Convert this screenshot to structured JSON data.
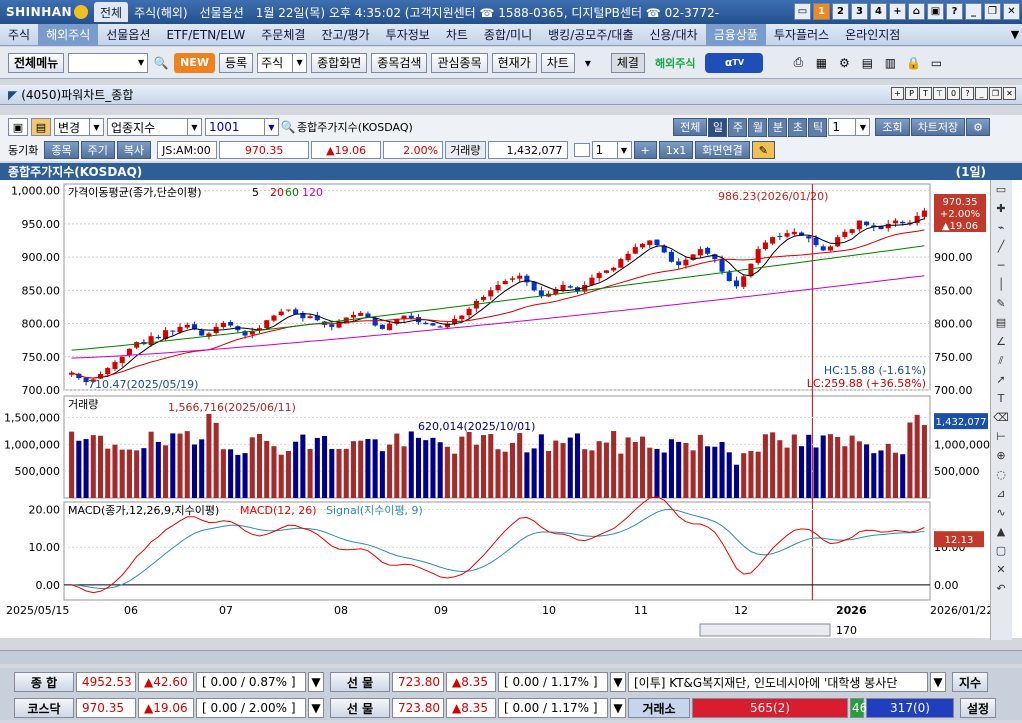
{
  "app": {
    "logo": "SHINHAN",
    "tabs": [
      "전체",
      "주식(해외)",
      "선물옵션"
    ],
    "info": "1월 22일(목) 오후 4:35:02 (고객지원센터 ☎ 1588-0365, 디지털PB센터 ☎ 02-3772-",
    "win_nums": [
      "1",
      "2",
      "3",
      "4",
      "+"
    ]
  },
  "menu": [
    "주식",
    "해외주식",
    "선물옵션",
    "ETF/ETN/ELW",
    "주문체결",
    "잔고/평가",
    "투자정보",
    "차트",
    "종합/미니",
    "뱅킹/공모주/대출",
    "신용/대차",
    "금융상품",
    "투자플러스",
    "온라인지점"
  ],
  "toolbar": {
    "allmenu": "전체메뉴",
    "new": "NEW",
    "register": "등록",
    "stock_sel": "주식",
    "combined": "종합화면",
    "search": "종목검색",
    "watch": "관심종목",
    "price": "현재가",
    "chart": "차트",
    "settle": "체결",
    "overseas": "해외주식"
  },
  "window": {
    "title": "(4050)파워차트_종합"
  },
  "controls": {
    "change": "변경",
    "index_type": "업종지수",
    "code": "1001",
    "name": "종합주가지수(KOSDAQ)",
    "periods": [
      "전체",
      "일",
      "주",
      "월",
      "분",
      "초",
      "틱"
    ],
    "period_num": "1",
    "query": "조회",
    "save": "차트저장",
    "sync": "동기화",
    "sync_tabs": [
      "종목",
      "주기",
      "복사"
    ],
    "js": "JS:AM:00",
    "price": "970.35",
    "change_val": "▲19.06",
    "pct": "2.00%",
    "vol_label": "거래량",
    "vol": "1,432,077",
    "count": "1",
    "oneone": "1x1",
    "screen_link": "화면연결"
  },
  "chart_header": {
    "title": "종합주가지수(KOSDAQ)",
    "period": "(1일)"
  },
  "chart_data": {
    "type": "candlestick",
    "price_panel": {
      "legend": "가격이동평균(종가,단순이평)",
      "ma_periods": [
        "5",
        "20",
        "60",
        "120"
      ],
      "ma_colors": {
        "5": "#000000",
        "20": "#d60000",
        "60": "#008000",
        "120": "#cc00cc"
      },
      "y_ticks": [
        "1,000.00",
        "950.00",
        "900.00",
        "850.00",
        "800.00",
        "750.00",
        "700.00"
      ],
      "ylim": [
        700,
        1010
      ],
      "high_annot": "986.23(2026/01/20)",
      "low_annot": "710.47(2025/05/19)",
      "hc": "HC:15.88 (-1.61%)",
      "lc": "LC:259.88 (+36.58%)",
      "last_price": "970.35",
      "last_pct": "+2.00%",
      "last_change": "▲19.06",
      "closes": [
        726,
        718,
        712,
        716,
        724,
        733,
        742,
        750,
        762,
        772,
        769,
        781,
        778,
        790,
        788,
        795,
        798,
        791,
        782,
        785,
        795,
        801,
        797,
        790,
        782,
        788,
        793,
        805,
        812,
        818,
        821,
        814,
        808,
        811,
        805,
        798,
        795,
        802,
        809,
        813,
        816,
        809,
        797,
        792,
        800,
        807,
        812,
        808,
        802,
        799,
        797,
        794,
        800,
        807,
        812,
        822,
        834,
        840,
        850,
        858,
        864,
        868,
        872,
        862,
        850,
        842,
        845,
        852,
        858,
        854,
        849,
        858,
        869,
        876,
        880,
        884,
        897,
        905,
        915,
        920,
        925,
        918,
        907,
        893,
        888,
        896,
        904,
        912,
        905,
        897,
        878,
        864,
        856,
        871,
        890,
        912,
        922,
        930,
        931,
        936,
        938,
        932,
        928,
        918,
        910,
        916,
        930,
        938,
        942,
        955,
        948,
        945,
        942,
        950,
        955,
        951,
        952,
        962,
        970
      ],
      "ma5_end": 958,
      "ma20_end": 943,
      "ma60_end": 917,
      "ma120_end": 872
    },
    "volume_panel": {
      "legend": "거래량",
      "y_ticks": [
        "1,500,000",
        "1,000,000",
        "500,000"
      ],
      "ylim": [
        0,
        1900000
      ],
      "max_annot": "1,566,716(2025/06/11)",
      "mid_annot": "620,014(2025/10/01)",
      "last_volume": "1,432,077"
    },
    "macd_panel": {
      "legend_a": "MACD(종가,12,26,9,지수이평)",
      "legend_b": "MACD(12, 26)",
      "legend_c": "Signal(지수이평, 9)",
      "y_ticks": [
        "20.00",
        "10.00",
        "0.00"
      ],
      "ylim": [
        -4,
        22
      ],
      "last_value": "12.13"
    },
    "x_labels": [
      "2025/05/15",
      "06",
      "07",
      "08",
      "09",
      "10",
      "11",
      "12",
      "2026",
      "2026/01/22"
    ],
    "scroll_num": "170"
  },
  "status": {
    "row1": {
      "label1": "종 합",
      "v1": "4952.53",
      "c1": "▲42.60",
      "p1": "[ 0.00 / 0.87% ]",
      "label2": "선 물",
      "v2": "723.80",
      "c2": "▲8.35",
      "p2": "[ 0.00 / 1.17% ]",
      "news": "[이투] KT&G복지재단, 인도네시아에 '대학생 봉사단",
      "btn": "지수"
    },
    "row2": {
      "label1": "코스닥",
      "v1": "970.35",
      "c1": "▲19.06",
      "p1": "[ 0.00 / 2.00% ]",
      "label2": "선 물",
      "v2": "723.80",
      "c2": "▲8.35",
      "p2": "[ 0.00 / 1.17% ]",
      "exch": "거래소",
      "up": "565(2)",
      "flat": "46",
      "down": "317(0)",
      "btn": "설정"
    }
  }
}
